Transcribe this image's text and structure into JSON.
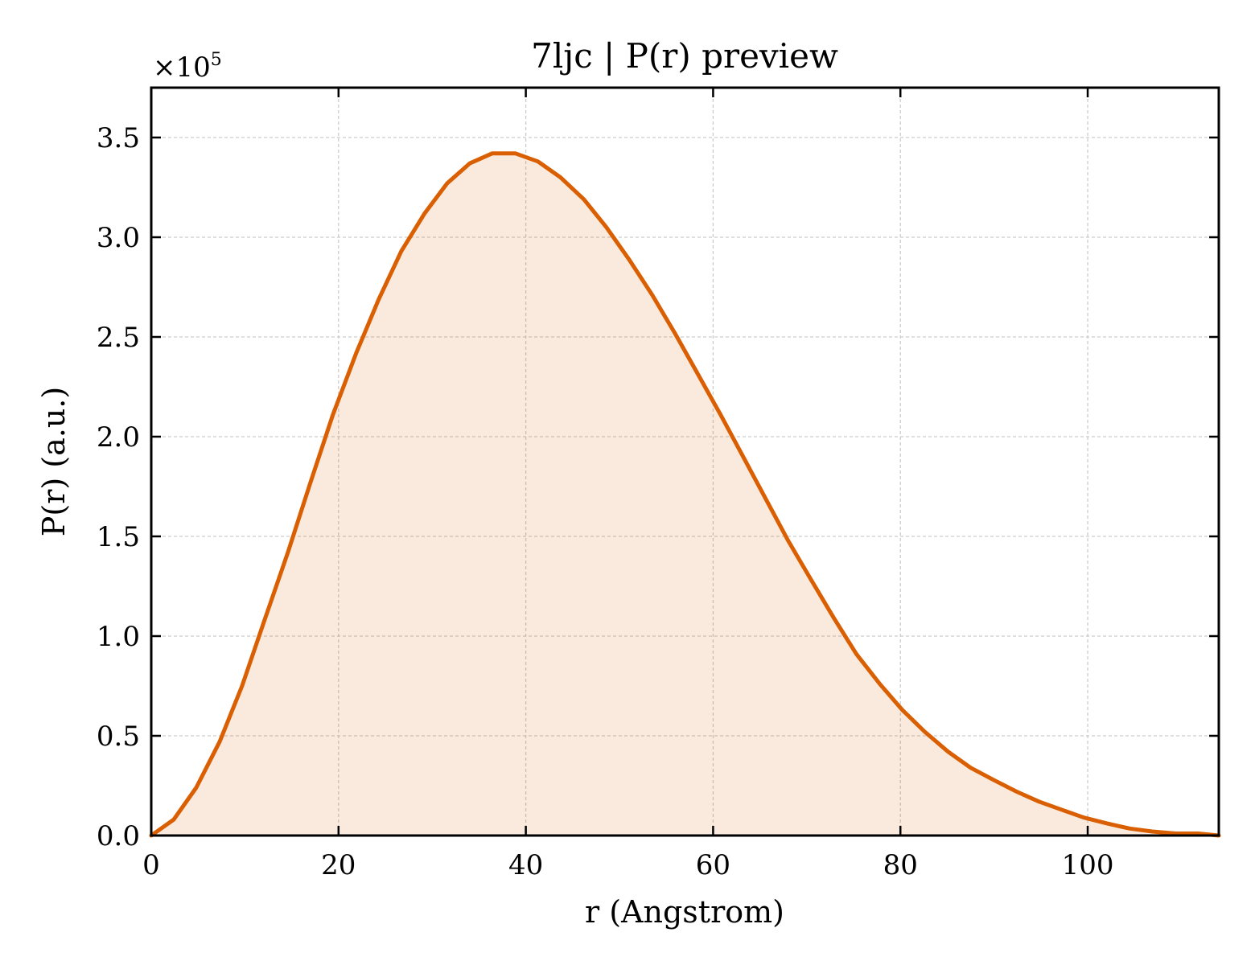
{
  "chart_data": {
    "type": "area",
    "title": "7ljc | P(r) preview",
    "xlabel": "r (Angstrom)",
    "ylabel": "P(r) (a.u.)",
    "y_multiplier": "×10",
    "y_multiplier_exp": "5",
    "xlim": [
      0,
      114
    ],
    "ylim": [
      0,
      3.75
    ],
    "x_ticks": [
      "0",
      "20",
      "40",
      "60",
      "80",
      "100"
    ],
    "y_ticks": [
      "0.0",
      "0.5",
      "1.0",
      "1.5",
      "2.0",
      "2.5",
      "3.0",
      "3.5"
    ],
    "grid": true,
    "line_color": "#d95f02",
    "fill_color": "#d95f02",
    "series": [
      {
        "x": [
          0,
          2.4,
          4.8,
          7.3,
          9.7,
          12.1,
          14.6,
          17.0,
          19.4,
          21.9,
          24.3,
          26.7,
          29.2,
          31.6,
          34.0,
          36.4,
          38.9,
          41.3,
          43.7,
          46.2,
          48.6,
          51.0,
          53.5,
          55.9,
          58.3,
          60.8,
          63.2,
          65.6,
          68.0,
          70.5,
          72.9,
          75.3,
          77.8,
          80.2,
          82.6,
          85.1,
          87.5,
          89.9,
          92.4,
          94.8,
          97.2,
          99.6,
          102.1,
          104.5,
          106.9,
          109.4,
          111.8,
          114.0
        ],
        "y": [
          0.0,
          0.08,
          0.24,
          0.47,
          0.75,
          1.08,
          1.42,
          1.77,
          2.11,
          2.42,
          2.69,
          2.93,
          3.12,
          3.27,
          3.37,
          3.42,
          3.42,
          3.38,
          3.3,
          3.19,
          3.05,
          2.89,
          2.71,
          2.52,
          2.32,
          2.11,
          1.9,
          1.69,
          1.48,
          1.28,
          1.09,
          0.91,
          0.76,
          0.63,
          0.52,
          0.42,
          0.34,
          0.28,
          0.22,
          0.17,
          0.13,
          0.09,
          0.06,
          0.035,
          0.02,
          0.01,
          0.01,
          0.0
        ]
      }
    ]
  }
}
